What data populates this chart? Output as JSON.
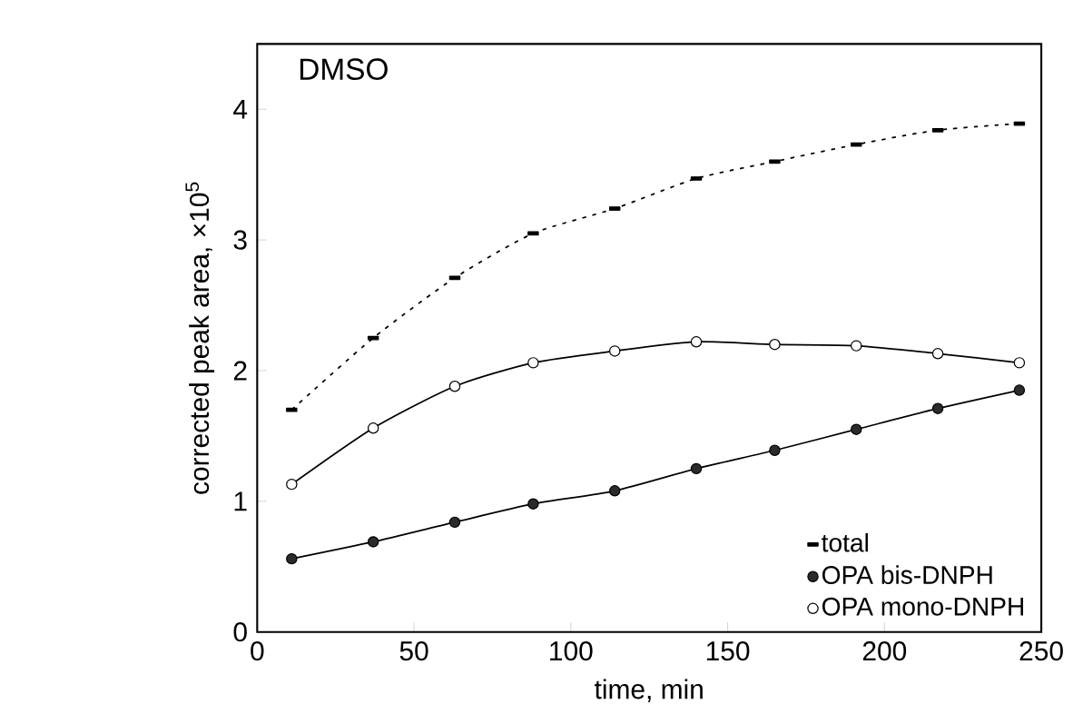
{
  "chart_data": {
    "type": "line",
    "title": "DMSO",
    "xlabel": "time, min",
    "ylabel": "corrected peak area, ×10$^{5}$",
    "xlim": [
      0,
      250
    ],
    "ylim": [
      0,
      4.5
    ],
    "xticks": [
      0,
      50,
      100,
      150,
      200,
      250
    ],
    "yticks": [
      0,
      1,
      2,
      3,
      4
    ],
    "legend": "bottom right",
    "grid": false,
    "series": [
      {
        "name": "total",
        "color": "#000000",
        "marker": "square",
        "line_style": "dotted",
        "x": [
          11,
          37,
          63,
          88,
          114,
          140,
          165,
          191,
          217,
          243
        ],
        "values": [
          1.7,
          2.25,
          2.71,
          3.05,
          3.24,
          3.47,
          3.6,
          3.73,
          3.84,
          3.89
        ]
      },
      {
        "name": "OPA bis-DNPH",
        "color": "#2b2b2b",
        "marker": "circle",
        "line_style": "solid",
        "x": [
          11,
          37,
          63,
          88,
          114,
          140,
          165,
          191,
          217,
          243
        ],
        "values": [
          0.56,
          0.69,
          0.84,
          0.98,
          1.08,
          1.25,
          1.39,
          1.55,
          1.71,
          1.85
        ]
      },
      {
        "name": "OPA mono-DNPH",
        "color": "#ffffff",
        "marker": "circle",
        "line_style": "solid",
        "x": [
          11,
          37,
          63,
          88,
          114,
          140,
          165,
          191,
          217,
          243
        ],
        "values": [
          1.13,
          1.56,
          1.88,
          2.06,
          2.15,
          2.22,
          2.2,
          2.19,
          2.13,
          2.06
        ]
      }
    ]
  }
}
